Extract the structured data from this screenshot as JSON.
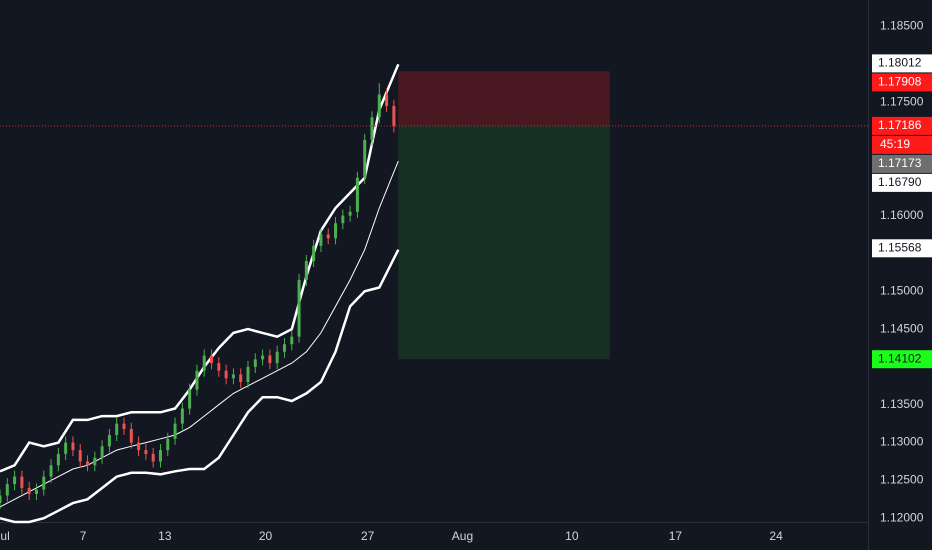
{
  "chart_data": {
    "type": "candlestick",
    "xlim": [
      0,
      59.5
    ],
    "ylim": [
      1.1195,
      1.1885
    ],
    "xticks": [
      {
        "value": 0.35,
        "label": "ul"
      },
      {
        "value": 5.7,
        "label": "7"
      },
      {
        "value": 11.3,
        "label": "13"
      },
      {
        "value": 18.2,
        "label": "20"
      },
      {
        "value": 25.2,
        "label": "27"
      },
      {
        "value": 31.7,
        "label": "Aug"
      },
      {
        "value": 39.2,
        "label": "10"
      },
      {
        "value": 46.3,
        "label": "17"
      },
      {
        "value": 53.2,
        "label": "24"
      }
    ],
    "yticks": [
      {
        "value": 1.185,
        "label": "1.18500"
      },
      {
        "value": 1.175,
        "label": "1.17500"
      },
      {
        "value": 1.16,
        "label": "1.16000"
      },
      {
        "value": 1.15,
        "label": "1.15000"
      },
      {
        "value": 1.145,
        "label": "1.14500"
      },
      {
        "value": 1.135,
        "label": "1.13500"
      },
      {
        "value": 1.13,
        "label": "1.13000"
      },
      {
        "value": 1.125,
        "label": "1.12500"
      },
      {
        "value": 1.12,
        "label": "1.12000"
      }
    ],
    "up_color": "#4caf50",
    "down_color": "#ef5350",
    "x": [
      0,
      0.5,
      1,
      1.5,
      2,
      2.5,
      3,
      3.5,
      4,
      4.5,
      5,
      5.5,
      6,
      6.5,
      7,
      7.5,
      8,
      8.5,
      9,
      9.5,
      10,
      10.5,
      11,
      11.5,
      12,
      12.5,
      13,
      13.5,
      14,
      14.5,
      15,
      15.5,
      16,
      16.5,
      17,
      17.5,
      18,
      18.5,
      19,
      19.5,
      20,
      20.5,
      21,
      21.5,
      22,
      22.5,
      23,
      23.5,
      24,
      24.5,
      25,
      25.5,
      26,
      26.5,
      27
    ],
    "open": [
      1.122,
      1.123,
      1.1245,
      1.1255,
      1.124,
      1.1232,
      1.1238,
      1.1255,
      1.127,
      1.1285,
      1.13,
      1.129,
      1.1275,
      1.127,
      1.128,
      1.1295,
      1.131,
      1.1325,
      1.1318,
      1.13,
      1.129,
      1.1285,
      1.1275,
      1.129,
      1.1305,
      1.1325,
      1.1345,
      1.137,
      1.1395,
      1.1415,
      1.1405,
      1.1395,
      1.1385,
      1.139,
      1.138,
      1.14,
      1.141,
      1.1415,
      1.1405,
      1.142,
      1.143,
      1.144,
      1.1515,
      1.154,
      1.156,
      1.1575,
      1.157,
      1.159,
      1.16,
      1.1605,
      1.165,
      1.17,
      1.173,
      1.176,
      1.1745
    ],
    "close": [
      1.123,
      1.1245,
      1.1255,
      1.124,
      1.1232,
      1.1238,
      1.1255,
      1.127,
      1.1285,
      1.13,
      1.129,
      1.1275,
      1.127,
      1.128,
      1.1295,
      1.131,
      1.1325,
      1.1318,
      1.13,
      1.129,
      1.1285,
      1.1275,
      1.129,
      1.1305,
      1.1325,
      1.1345,
      1.137,
      1.1395,
      1.1415,
      1.1405,
      1.1395,
      1.1385,
      1.139,
      1.138,
      1.14,
      1.141,
      1.1415,
      1.1405,
      1.142,
      1.143,
      1.144,
      1.1515,
      1.154,
      1.156,
      1.1575,
      1.157,
      1.159,
      1.16,
      1.1605,
      1.165,
      1.17,
      1.173,
      1.176,
      1.1745,
      1.1718
    ],
    "high": [
      1.1238,
      1.1253,
      1.1263,
      1.1263,
      1.1248,
      1.1246,
      1.1263,
      1.1278,
      1.1293,
      1.1308,
      1.1308,
      1.1298,
      1.1283,
      1.1288,
      1.1303,
      1.1318,
      1.1333,
      1.1333,
      1.1326,
      1.1308,
      1.1298,
      1.1293,
      1.1298,
      1.1313,
      1.1333,
      1.1353,
      1.1378,
      1.1403,
      1.1423,
      1.1423,
      1.1413,
      1.1403,
      1.1398,
      1.1398,
      1.1408,
      1.1418,
      1.1423,
      1.1423,
      1.1428,
      1.1438,
      1.1448,
      1.1523,
      1.1548,
      1.1568,
      1.1583,
      1.1583,
      1.1598,
      1.1608,
      1.1613,
      1.1658,
      1.1708,
      1.1738,
      1.1775,
      1.1768,
      1.1753
    ],
    "low": [
      1.1212,
      1.1222,
      1.1237,
      1.1232,
      1.1224,
      1.1224,
      1.123,
      1.1247,
      1.1262,
      1.1277,
      1.1282,
      1.1267,
      1.1262,
      1.1262,
      1.1272,
      1.1287,
      1.1302,
      1.131,
      1.1292,
      1.1282,
      1.1277,
      1.1267,
      1.1267,
      1.1282,
      1.1297,
      1.1317,
      1.1337,
      1.1362,
      1.1387,
      1.1397,
      1.1387,
      1.1377,
      1.1377,
      1.1372,
      1.1372,
      1.1392,
      1.1402,
      1.1397,
      1.1397,
      1.1412,
      1.1422,
      1.1432,
      1.1507,
      1.1532,
      1.1552,
      1.1562,
      1.1562,
      1.1582,
      1.1592,
      1.1597,
      1.1642,
      1.1692,
      1.1722,
      1.1737,
      1.171
    ],
    "band_x": [
      0,
      1,
      2,
      3,
      4,
      5,
      6,
      7,
      8,
      9,
      10,
      11,
      12,
      13,
      14,
      15,
      16,
      17,
      18,
      19,
      20,
      21,
      22,
      23,
      24,
      25,
      26,
      27.3
    ],
    "bands": [
      {
        "name": "upper",
        "color": "#ffffff",
        "width": 2.5,
        "values": [
          1.1262,
          1.127,
          1.13,
          1.1295,
          1.13,
          1.133,
          1.133,
          1.1335,
          1.1335,
          1.134,
          1.134,
          1.134,
          1.1345,
          1.137,
          1.14,
          1.1425,
          1.1445,
          1.145,
          1.1445,
          1.144,
          1.145,
          1.152,
          1.158,
          1.161,
          1.163,
          1.165,
          1.174,
          1.18
        ]
      },
      {
        "name": "middle",
        "color": "#ffffff",
        "width": 1,
        "values": [
          1.1215,
          1.1225,
          1.1235,
          1.1245,
          1.1255,
          1.1265,
          1.127,
          1.128,
          1.129,
          1.1295,
          1.13,
          1.1305,
          1.131,
          1.132,
          1.1335,
          1.135,
          1.1365,
          1.1375,
          1.1385,
          1.1395,
          1.1405,
          1.142,
          1.1445,
          1.148,
          1.1515,
          1.1555,
          1.161,
          1.1672
        ]
      },
      {
        "name": "lower",
        "color": "#ffffff",
        "width": 2.5,
        "values": [
          1.12,
          1.1195,
          1.1195,
          1.12,
          1.121,
          1.122,
          1.1225,
          1.124,
          1.1255,
          1.126,
          1.126,
          1.1258,
          1.1262,
          1.1265,
          1.1265,
          1.128,
          1.131,
          1.134,
          1.136,
          1.136,
          1.1355,
          1.1365,
          1.138,
          1.142,
          1.148,
          1.15,
          1.1505,
          1.1555
        ]
      }
    ],
    "position": {
      "x": [
        27.3,
        41.8
      ],
      "entry": 1.17186,
      "stop": 1.17908,
      "target": 1.14102,
      "stop_color": "#4a1820",
      "target_color": "#173024"
    },
    "current_price": 1.17186,
    "countdown": "45:19",
    "price_labels": [
      {
        "value": 1.18012,
        "label": "1.18012",
        "color": "#ffffff",
        "text_color": "#131722"
      },
      {
        "value": 1.17908,
        "label": "1.17908",
        "color": "#ff1a1a",
        "text_color": "#ffffff"
      },
      {
        "value": 1.17186,
        "label": "1.17186",
        "color": "#ff1a1a",
        "text_color": "#ffffff"
      },
      {
        "value": 1.17173,
        "label": "1.17173",
        "color": "#6f6f6f",
        "text_color": "#ffffff"
      },
      {
        "value": 1.1679,
        "label": "1.16790",
        "color": "#ffffff",
        "text_color": "#131722"
      },
      {
        "value": 1.15568,
        "label": "1.15568",
        "color": "#ffffff",
        "text_color": "#131722"
      },
      {
        "value": 1.14102,
        "label": "1.14102",
        "color": "#1aff1a",
        "text_color": "#131722"
      }
    ]
  }
}
